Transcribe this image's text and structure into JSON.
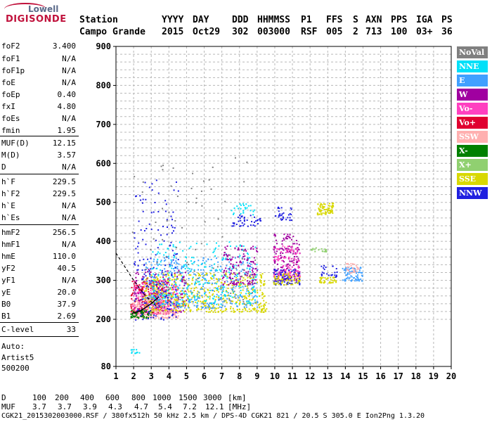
{
  "logo": {
    "top": "Lowell",
    "bottom": "DIGISONDE"
  },
  "header": {
    "labels": [
      "Station",
      "YYYY",
      "DAY",
      "DDD",
      "HHMMSS",
      "P1",
      "FFS",
      "S",
      "AXN",
      "PPS",
      "IGA",
      "PS"
    ],
    "values": [
      "Campo Grande",
      "2015",
      "Oct29",
      "302",
      "003000",
      "RSF",
      "005",
      "2",
      "713",
      "100",
      "03+",
      "36"
    ]
  },
  "params": [
    {
      "name": "foF2",
      "value": "3.400"
    },
    {
      "name": "foF1",
      "value": "N/A"
    },
    {
      "name": "foF1p",
      "value": "N/A"
    },
    {
      "name": "foE",
      "value": "N/A"
    },
    {
      "name": "foEp",
      "value": "0.40"
    },
    {
      "name": "fxI",
      "value": "4.80"
    },
    {
      "name": "foEs",
      "value": "N/A"
    },
    {
      "name": "fmin",
      "value": "1.95"
    },
    {
      "name": "MUF(D)",
      "value": "12.15"
    },
    {
      "name": "M(D)",
      "value": "3.57"
    },
    {
      "name": "D",
      "value": "N/A"
    },
    {
      "name": "h`F",
      "value": "229.5"
    },
    {
      "name": "h`F2",
      "value": "229.5"
    },
    {
      "name": "h`E",
      "value": "N/A"
    },
    {
      "name": "h`Es",
      "value": "N/A"
    },
    {
      "name": "hmF2",
      "value": "256.5"
    },
    {
      "name": "hmF1",
      "value": "N/A"
    },
    {
      "name": "hmE",
      "value": "110.0"
    },
    {
      "name": "yF2",
      "value": "40.5"
    },
    {
      "name": "yF1",
      "value": "N/A"
    },
    {
      "name": "yE",
      "value": "20.0"
    },
    {
      "name": "B0",
      "value": "37.9"
    },
    {
      "name": "B1",
      "value": "2.69"
    },
    {
      "name": "C-level",
      "value": "33"
    }
  ],
  "auto": {
    "line1": "Auto:",
    "line2": "Artist5",
    "line3": "500200"
  },
  "legend": [
    {
      "label": "NoVal",
      "color": "#808080",
      "text_color": "#ffffff"
    },
    {
      "label": "NNE",
      "color": "#00e0f8",
      "text_color": "#ffffff"
    },
    {
      "label": "E",
      "color": "#40a0ff",
      "text_color": "#ffffff"
    },
    {
      "label": "W",
      "color": "#a000a0",
      "text_color": "#ffffff"
    },
    {
      "label": "Vo-",
      "color": "#ff40c0",
      "text_color": "#ffffff"
    },
    {
      "label": "Vo+",
      "color": "#e00030",
      "text_color": "#ffffff"
    },
    {
      "label": "SSW",
      "color": "#ffb0b0",
      "text_color": "#ffffff"
    },
    {
      "label": "X-",
      "color": "#008000",
      "text_color": "#ffffff"
    },
    {
      "label": "X+",
      "color": "#90d070",
      "text_color": "#ffffff"
    },
    {
      "label": "SSE",
      "color": "#d8d800",
      "text_color": "#ffffff"
    },
    {
      "label": "NNW",
      "color": "#2020e0",
      "text_color": "#ffffff"
    }
  ],
  "footer": {
    "d_label": "D",
    "d_values": [
      "100",
      "200",
      "400",
      "600",
      "800",
      "1000",
      "1500",
      "3000",
      "[km]"
    ],
    "muf_label": "MUF",
    "muf_values": [
      "3.7",
      "3.7",
      "3.9",
      "4.3",
      "4.7",
      "5.4",
      "7.2",
      "12.1",
      "[MHz]"
    ],
    "file_line": "CGK21_2015302003000.RSF / 380fx512h 50 kHz 2.5 km / DPS-4D CGK21 821 / 20.5 S 305.0 E Ion2Png 1.3.20"
  },
  "chart_data": {
    "type": "scatter",
    "xlim": [
      1,
      20
    ],
    "ylim": [
      80,
      900
    ],
    "x_ticks": [
      1,
      2,
      3,
      4,
      5,
      6,
      7,
      8,
      9,
      10,
      11,
      12,
      13,
      14,
      15,
      16,
      17,
      18,
      19,
      20
    ],
    "y_ticks": [
      80,
      200,
      300,
      400,
      500,
      600,
      700,
      800,
      900
    ],
    "grid": true,
    "legend_position": "right",
    "clusters": [
      {
        "series": "Vo+",
        "x": [
          1.8,
          4.0
        ],
        "y": [
          215,
          300
        ],
        "n": 260
      },
      {
        "series": "Vo-",
        "x": [
          1.9,
          4.5
        ],
        "y": [
          215,
          310
        ],
        "n": 220
      },
      {
        "series": "W",
        "x": [
          2.0,
          5.0
        ],
        "y": [
          220,
          330
        ],
        "n": 180
      },
      {
        "series": "SSW",
        "x": [
          1.8,
          4.5
        ],
        "y": [
          205,
          260
        ],
        "n": 200
      },
      {
        "series": "X-",
        "x": [
          1.8,
          3.0
        ],
        "y": [
          205,
          225
        ],
        "n": 60
      },
      {
        "series": "SSE",
        "x": [
          2.5,
          9.5
        ],
        "y": [
          220,
          320
        ],
        "n": 520
      },
      {
        "series": "E",
        "x": [
          2.5,
          9.0
        ],
        "y": [
          230,
          360
        ],
        "n": 360
      },
      {
        "series": "NNE",
        "x": [
          3.0,
          9.0
        ],
        "y": [
          240,
          400
        ],
        "n": 260
      },
      {
        "series": "NNW",
        "x": [
          2.0,
          4.5
        ],
        "y": [
          200,
          560
        ],
        "n": 160
      },
      {
        "series": "NNW",
        "x": [
          7.5,
          9.2
        ],
        "y": [
          440,
          470
        ],
        "n": 40
      },
      {
        "series": "NNE",
        "x": [
          7.5,
          8.8
        ],
        "y": [
          470,
          500
        ],
        "n": 25
      },
      {
        "series": "W",
        "x": [
          7.0,
          9.0
        ],
        "y": [
          290,
          390
        ],
        "n": 140
      },
      {
        "series": "W",
        "x": [
          9.9,
          11.4
        ],
        "y": [
          300,
          420
        ],
        "n": 160
      },
      {
        "series": "Vo-",
        "x": [
          9.9,
          11.4
        ],
        "y": [
          310,
          390
        ],
        "n": 110
      },
      {
        "series": "NNW",
        "x": [
          9.9,
          11.4
        ],
        "y": [
          290,
          330
        ],
        "n": 80
      },
      {
        "series": "SSE",
        "x": [
          9.9,
          11.4
        ],
        "y": [
          290,
          320
        ],
        "n": 60
      },
      {
        "series": "NNW",
        "x": [
          10.0,
          11.0
        ],
        "y": [
          455,
          490
        ],
        "n": 30
      },
      {
        "series": "SSE",
        "x": [
          12.3,
          13.3
        ],
        "y": [
          470,
          500
        ],
        "n": 70
      },
      {
        "series": "X+",
        "x": [
          12.0,
          12.9
        ],
        "y": [
          375,
          385
        ],
        "n": 18
      },
      {
        "series": "SSE",
        "x": [
          12.5,
          13.5
        ],
        "y": [
          295,
          310
        ],
        "n": 40
      },
      {
        "series": "NNW",
        "x": [
          12.6,
          13.5
        ],
        "y": [
          310,
          340
        ],
        "n": 25
      },
      {
        "series": "E",
        "x": [
          13.8,
          15.0
        ],
        "y": [
          300,
          335
        ],
        "n": 70
      },
      {
        "series": "SSW",
        "x": [
          14.0,
          14.8
        ],
        "y": [
          320,
          345
        ],
        "n": 30
      },
      {
        "series": "NNE",
        "x": [
          1.8,
          2.3
        ],
        "y": [
          115,
          125
        ],
        "n": 12
      },
      {
        "series": "NoVal",
        "x": [
          1.8,
          9.0
        ],
        "y": [
          240,
          620
        ],
        "n": 80
      }
    ],
    "profile_curve": {
      "x": [
        1.9,
        2.4,
        3.0,
        3.4
      ],
      "y": [
        215,
        222,
        240,
        256.5
      ]
    },
    "trace_curve": {
      "x": [
        1.0,
        1.5,
        2.0,
        2.5,
        3.0,
        3.4
      ],
      "y": [
        370,
        335,
        300,
        270,
        245,
        229.5
      ]
    }
  }
}
